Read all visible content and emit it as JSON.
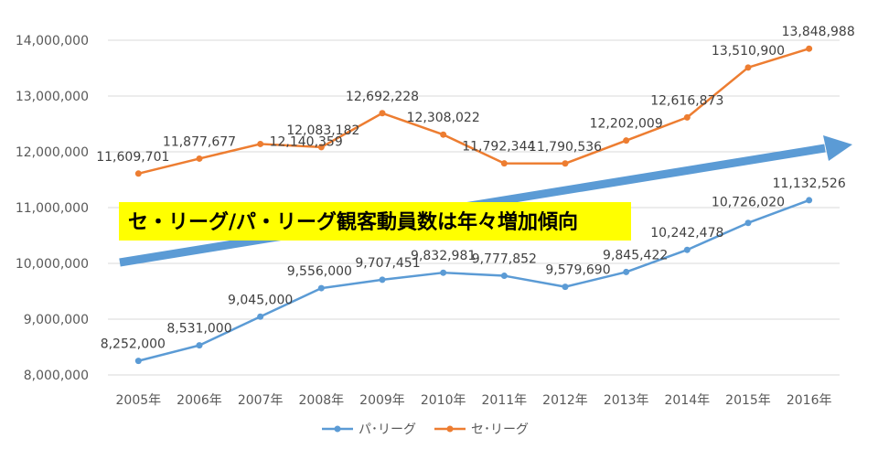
{
  "chart_data": {
    "type": "line",
    "title": "",
    "xlabel": "",
    "ylabel": "",
    "ylim": [
      8000000,
      14000000
    ],
    "y_ticks": [
      "8,000,000",
      "9,000,000",
      "10,000,000",
      "11,000,000",
      "12,000,000",
      "13,000,000",
      "14,000,000"
    ],
    "y_tick_values": [
      8000000,
      9000000,
      10000000,
      11000000,
      12000000,
      13000000,
      14000000
    ],
    "categories": [
      "2005年",
      "2006年",
      "2007年",
      "2008年",
      "2009年",
      "2010年",
      "2011年",
      "2012年",
      "2013年",
      "2014年",
      "2015年",
      "2016年"
    ],
    "series": [
      {
        "name": "パ･リーグ",
        "color": "#5B9BD5",
        "values": [
          8252000,
          8531000,
          9045000,
          9556000,
          9707451,
          9832981,
          9777852,
          9579690,
          9845422,
          10242478,
          10726020,
          11132526
        ],
        "labels": [
          "8,252,000",
          "8,531,000",
          "9,045,000",
          "9,556,000",
          "9,707,451",
          "9,832,981",
          "9,777,852",
          "9,579,690",
          "9,845,422",
          "10,242,478",
          "10,726,020",
          "11,132,526"
        ]
      },
      {
        "name": "セ･リーグ",
        "color": "#ED7D31",
        "values": [
          11609701,
          11877677,
          12140359,
          12083182,
          12692228,
          12308022,
          11792344,
          11790536,
          12202009,
          12616873,
          13510900,
          13848988
        ],
        "labels": [
          "11,609,701",
          "11,877,677",
          "12,140,359",
          "12,083,182",
          "12,692,228",
          "12,308,022",
          "11,792,344",
          "11,790,536",
          "12,202,009",
          "12,616,873",
          "13,510,900",
          "13,848,988"
        ]
      }
    ],
    "legend": "bottom",
    "grid": true,
    "annotation": {
      "text": "セ・リーグ/パ・リーグ観客動員数は年々増加傾向",
      "background": "#FFFF00",
      "arrow_color": "#5B9BD5"
    }
  }
}
